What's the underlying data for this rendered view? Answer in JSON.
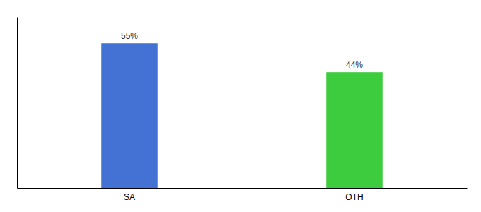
{
  "chart_data": {
    "type": "bar",
    "categories": [
      "SA",
      "OTH"
    ],
    "values": [
      55,
      44
    ],
    "value_labels": [
      "55%",
      "44%"
    ],
    "colors": [
      "#4472d4",
      "#3dcc3d"
    ],
    "ylim": [
      0,
      65
    ],
    "data_labels": true,
    "tick_labels": "x"
  }
}
